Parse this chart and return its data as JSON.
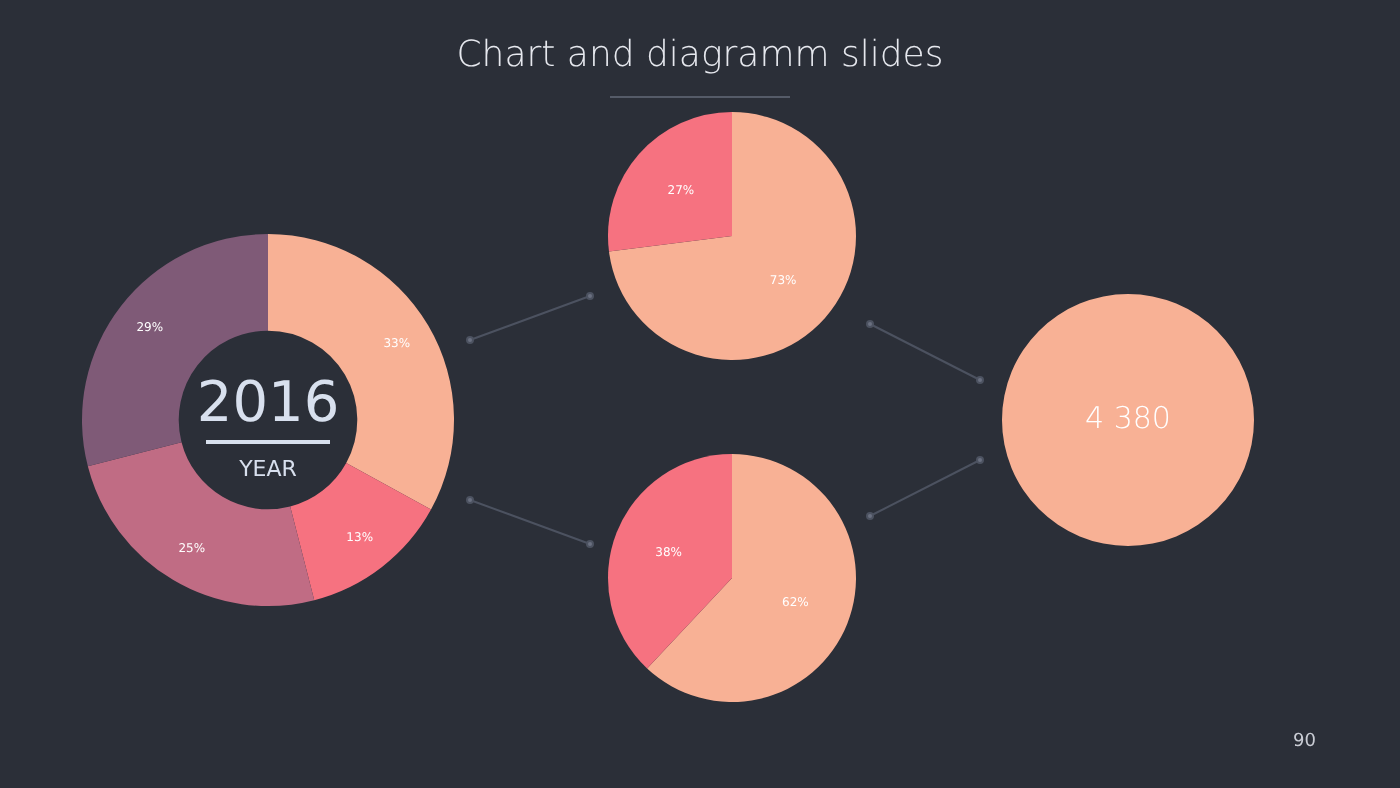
{
  "chart_data": [
    {
      "type": "donut",
      "categories": [
        null,
        null,
        null,
        null
      ],
      "values": [
        33,
        13,
        25,
        29
      ],
      "colors": [
        "#f8b195",
        "#f67280",
        "#c06c84",
        "#7f5a77"
      ],
      "value_labels": [
        "33%",
        "13%",
        "25%",
        "29%"
      ],
      "annotations": [
        "2016",
        "YEAR"
      ]
    },
    {
      "type": "pie",
      "title": "Chart and diagramm slides",
      "categories": [
        null,
        null
      ],
      "values": [
        73,
        27
      ],
      "colors": [
        "#f8b195",
        "#f67280"
      ],
      "value_labels": [
        "73%",
        "27%"
      ]
    },
    {
      "type": "pie",
      "categories": [
        null,
        null
      ],
      "values": [
        62,
        38
      ],
      "colors": [
        "#f8b195",
        "#f67280"
      ],
      "value_labels": [
        "62%",
        "38%"
      ]
    },
    {
      "type": "other",
      "values": [
        4380
      ],
      "value_labels": [
        "4 380"
      ],
      "colors": [
        "#f8b195"
      ],
      "annotations": [
        "90"
      ]
    }
  ]
}
